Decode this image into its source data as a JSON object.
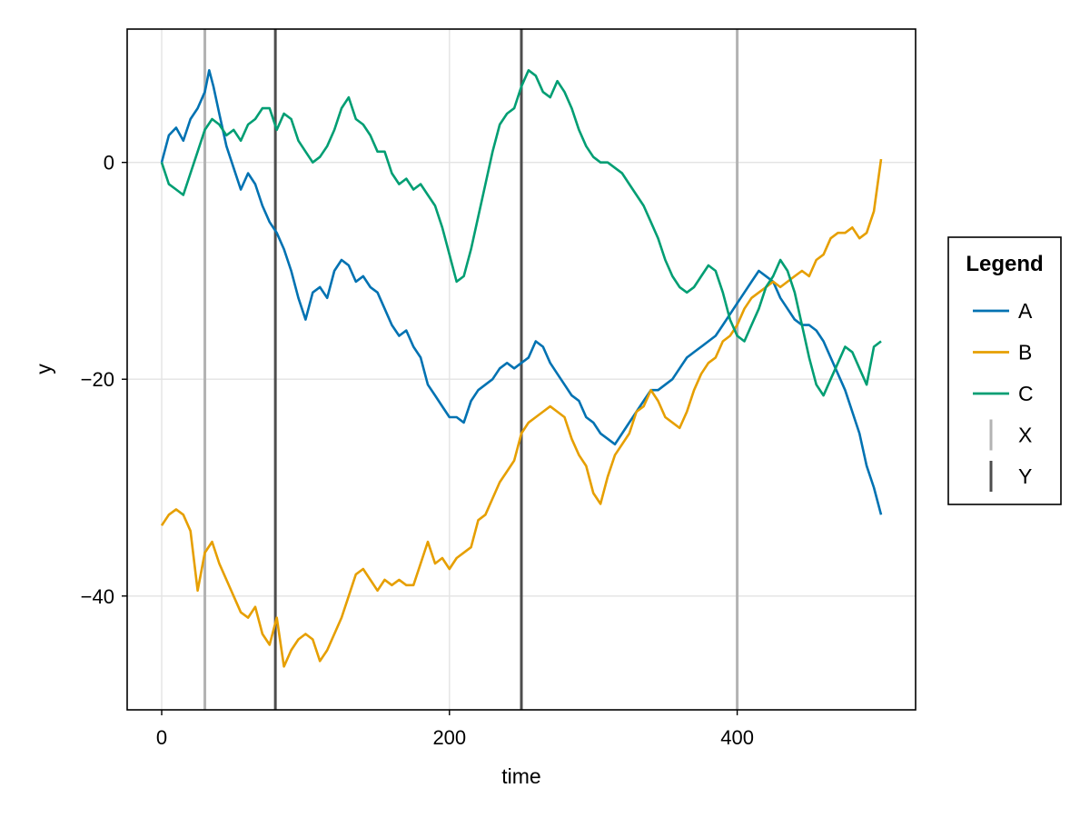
{
  "chart_data": {
    "type": "line",
    "title": "",
    "xlabel": "time",
    "ylabel": "y",
    "xlim": [
      -24,
      524
    ],
    "ylim": [
      -50.5,
      12.3
    ],
    "xticks": [
      0,
      200,
      400
    ],
    "yticks": [
      0,
      -20,
      -40
    ],
    "xtick_labels": [
      "0",
      "200",
      "400"
    ],
    "ytick_labels": [
      "0",
      "−20",
      "−40"
    ],
    "grid": true,
    "legend_title": "Legend",
    "legend_position": "right",
    "series": [
      {
        "name": "A",
        "color": "#0072b2",
        "x": [
          0,
          5,
          10,
          15,
          20,
          25,
          30,
          33,
          36,
          40,
          45,
          50,
          55,
          60,
          65,
          70,
          75,
          80,
          85,
          90,
          95,
          100,
          105,
          110,
          115,
          120,
          125,
          130,
          135,
          140,
          145,
          150,
          155,
          160,
          165,
          170,
          175,
          180,
          185,
          190,
          195,
          200,
          205,
          210,
          215,
          220,
          225,
          230,
          235,
          240,
          245,
          250,
          255,
          260,
          265,
          270,
          275,
          280,
          285,
          290,
          295,
          300,
          305,
          310,
          315,
          320,
          325,
          330,
          335,
          340,
          345,
          350,
          355,
          360,
          365,
          370,
          375,
          380,
          385,
          390,
          395,
          400,
          405,
          410,
          415,
          420,
          425,
          430,
          435,
          440,
          445,
          450,
          455,
          460,
          465,
          470,
          475,
          480,
          485,
          490,
          495,
          500
        ],
        "y": [
          0,
          2.5,
          3.2,
          2.0,
          4.0,
          5.0,
          6.5,
          8.5,
          7.0,
          4.5,
          1.5,
          -0.5,
          -2.5,
          -1.0,
          -2.0,
          -4.0,
          -5.5,
          -6.5,
          -8.0,
          -10.0,
          -12.5,
          -14.5,
          -12.0,
          -11.5,
          -12.5,
          -10.0,
          -9.0,
          -9.5,
          -11.0,
          -10.5,
          -11.5,
          -12.0,
          -13.5,
          -15.0,
          -16.0,
          -15.5,
          -17.0,
          -18.0,
          -20.5,
          -21.5,
          -22.5,
          -23.5,
          -23.5,
          -24.0,
          -22.0,
          -21.0,
          -20.5,
          -20.0,
          -19.0,
          -18.5,
          -19.0,
          -18.5,
          -18.0,
          -16.5,
          -17.0,
          -18.5,
          -19.5,
          -20.5,
          -21.5,
          -22.0,
          -23.5,
          -24.0,
          -25.0,
          -25.5,
          -26.0,
          -25.0,
          -24.0,
          -23.0,
          -22.0,
          -21.0,
          -21.0,
          -20.5,
          -20.0,
          -19.0,
          -18.0,
          -17.5,
          -17.0,
          -16.5,
          -16.0,
          -15.0,
          -14.0,
          -13.0,
          -12.0,
          -11.0,
          -10.0,
          -10.5,
          -11.0,
          -12.5,
          -13.5,
          -14.5,
          -15.0,
          -15.0,
          -15.5,
          -16.5,
          -18.0,
          -19.5,
          -21.0,
          -23.0,
          -25.0,
          -28.0,
          -30.0,
          -32.5
        ]
      },
      {
        "name": "B",
        "color": "#e69f00",
        "x": [
          0,
          5,
          10,
          15,
          20,
          25,
          30,
          35,
          40,
          45,
          50,
          55,
          60,
          65,
          70,
          75,
          80,
          85,
          90,
          95,
          100,
          105,
          110,
          115,
          120,
          125,
          130,
          135,
          140,
          145,
          150,
          155,
          160,
          165,
          170,
          175,
          180,
          185,
          190,
          195,
          200,
          205,
          210,
          215,
          220,
          225,
          230,
          235,
          240,
          245,
          250,
          255,
          260,
          265,
          270,
          275,
          280,
          285,
          290,
          295,
          300,
          305,
          310,
          315,
          320,
          325,
          330,
          335,
          340,
          345,
          350,
          355,
          360,
          365,
          370,
          375,
          380,
          385,
          390,
          395,
          400,
          405,
          410,
          415,
          420,
          425,
          430,
          435,
          440,
          445,
          450,
          455,
          460,
          465,
          470,
          475,
          480,
          485,
          490,
          495,
          500
        ],
        "y": [
          -33.5,
          -32.5,
          -32.0,
          -32.5,
          -34.0,
          -39.5,
          -36.0,
          -35.0,
          -37.0,
          -38.5,
          -40.0,
          -41.5,
          -42.0,
          -41.0,
          -43.5,
          -44.5,
          -42.0,
          -46.5,
          -45.0,
          -44.0,
          -43.5,
          -44.0,
          -46.0,
          -45.0,
          -43.5,
          -42.0,
          -40.0,
          -38.0,
          -37.5,
          -38.5,
          -39.5,
          -38.5,
          -39.0,
          -38.5,
          -39.0,
          -39.0,
          -37.0,
          -35.0,
          -37.0,
          -36.5,
          -37.5,
          -36.5,
          -36.0,
          -35.5,
          -33.0,
          -32.5,
          -31.0,
          -29.5,
          -28.5,
          -27.5,
          -25.0,
          -24.0,
          -23.5,
          -23.0,
          -22.5,
          -23.0,
          -23.5,
          -25.5,
          -27.0,
          -28.0,
          -30.5,
          -31.5,
          -29.0,
          -27.0,
          -26.0,
          -25.0,
          -23.0,
          -22.5,
          -21.0,
          -22.0,
          -23.5,
          -24.0,
          -24.5,
          -23.0,
          -21.0,
          -19.5,
          -18.5,
          -18.0,
          -16.5,
          -16.0,
          -15.0,
          -13.5,
          -12.5,
          -12.0,
          -11.5,
          -11.0,
          -11.5,
          -11.0,
          -10.5,
          -10.0,
          -10.5,
          -9.0,
          -8.5,
          -7.0,
          -6.5,
          -6.5,
          -6.0,
          -7.0,
          -6.5,
          -4.5,
          0.3
        ]
      },
      {
        "name": "C",
        "color": "#009e73",
        "x": [
          0,
          5,
          10,
          15,
          20,
          25,
          30,
          35,
          40,
          45,
          50,
          55,
          60,
          65,
          70,
          75,
          80,
          85,
          90,
          95,
          100,
          105,
          110,
          115,
          120,
          125,
          130,
          135,
          140,
          145,
          150,
          155,
          160,
          165,
          170,
          175,
          180,
          185,
          190,
          195,
          200,
          205,
          210,
          215,
          220,
          225,
          230,
          235,
          240,
          245,
          250,
          255,
          260,
          265,
          270,
          275,
          280,
          285,
          290,
          295,
          300,
          305,
          310,
          315,
          320,
          325,
          330,
          335,
          340,
          345,
          350,
          355,
          360,
          365,
          370,
          375,
          380,
          385,
          390,
          395,
          400,
          405,
          410,
          415,
          420,
          425,
          430,
          435,
          440,
          445,
          450,
          455,
          460,
          465,
          470,
          475,
          480,
          485,
          490,
          495,
          500
        ],
        "y": [
          0,
          -2.0,
          -2.5,
          -3.0,
          -1.0,
          1.0,
          3.0,
          4.0,
          3.5,
          2.5,
          3.0,
          2.0,
          3.5,
          4.0,
          5.0,
          5.0,
          3.0,
          4.5,
          4.0,
          2.0,
          1.0,
          0.0,
          0.5,
          1.5,
          3.0,
          5.0,
          6.0,
          4.0,
          3.5,
          2.5,
          1.0,
          1.0,
          -1.0,
          -2.0,
          -1.5,
          -2.5,
          -2.0,
          -3.0,
          -4.0,
          -6.0,
          -8.5,
          -11.0,
          -10.5,
          -8.0,
          -5.0,
          -2.0,
          1.0,
          3.5,
          4.5,
          5.0,
          7.0,
          8.5,
          8.0,
          6.5,
          6.0,
          7.5,
          6.5,
          5.0,
          3.0,
          1.5,
          0.5,
          0.0,
          0.0,
          -0.5,
          -1.0,
          -2.0,
          -3.0,
          -4.0,
          -5.5,
          -7.0,
          -9.0,
          -10.5,
          -11.5,
          -12.0,
          -11.5,
          -10.5,
          -9.5,
          -10.0,
          -12.0,
          -14.5,
          -16.0,
          -16.5,
          -15.0,
          -13.5,
          -11.5,
          -10.5,
          -9.0,
          -10.0,
          -12.0,
          -15.0,
          -18.0,
          -20.5,
          -21.5,
          -20.0,
          -18.5,
          -17.0,
          -17.5,
          -19.0,
          -20.5,
          -17.0,
          -16.5
        ]
      },
      {
        "name": "X",
        "color": "#b3b3b3",
        "type": "vline",
        "x": [
          30,
          400
        ]
      },
      {
        "name": "Y",
        "color": "#4d4d4d",
        "type": "vline",
        "x": [
          79,
          250
        ]
      }
    ]
  }
}
